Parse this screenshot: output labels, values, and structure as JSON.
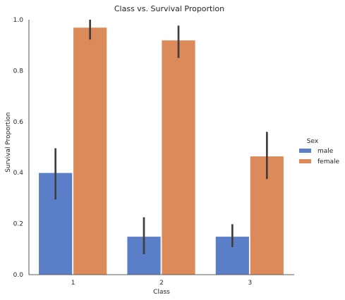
{
  "chart_data": {
    "type": "bar",
    "title": "Class vs. Survival Proportion",
    "xlabel": "Class",
    "ylabel": "Survival Proportion",
    "categories": [
      "1",
      "2",
      "3"
    ],
    "ylim": [
      0,
      1.0
    ],
    "yticks": [
      0.0,
      0.2,
      0.4,
      0.6,
      0.8,
      1.0
    ],
    "ytick_labels": [
      "0.0",
      "0.2",
      "0.4",
      "0.6",
      "0.8",
      "1.0"
    ],
    "legend": {
      "title": "Sex",
      "placement": "right"
    },
    "series": [
      {
        "name": "male",
        "color": "#5b7ec8",
        "values": [
          0.4,
          0.15,
          0.15
        ],
        "ci_low": [
          0.295,
          0.08,
          0.108
        ],
        "ci_high": [
          0.496,
          0.225,
          0.198
        ]
      },
      {
        "name": "female",
        "color": "#dd8a5a",
        "values": [
          0.97,
          0.92,
          0.465
        ],
        "ci_low": [
          0.922,
          0.85,
          0.375
        ],
        "ci_high": [
          1.0,
          0.977,
          0.56
        ]
      }
    ]
  }
}
